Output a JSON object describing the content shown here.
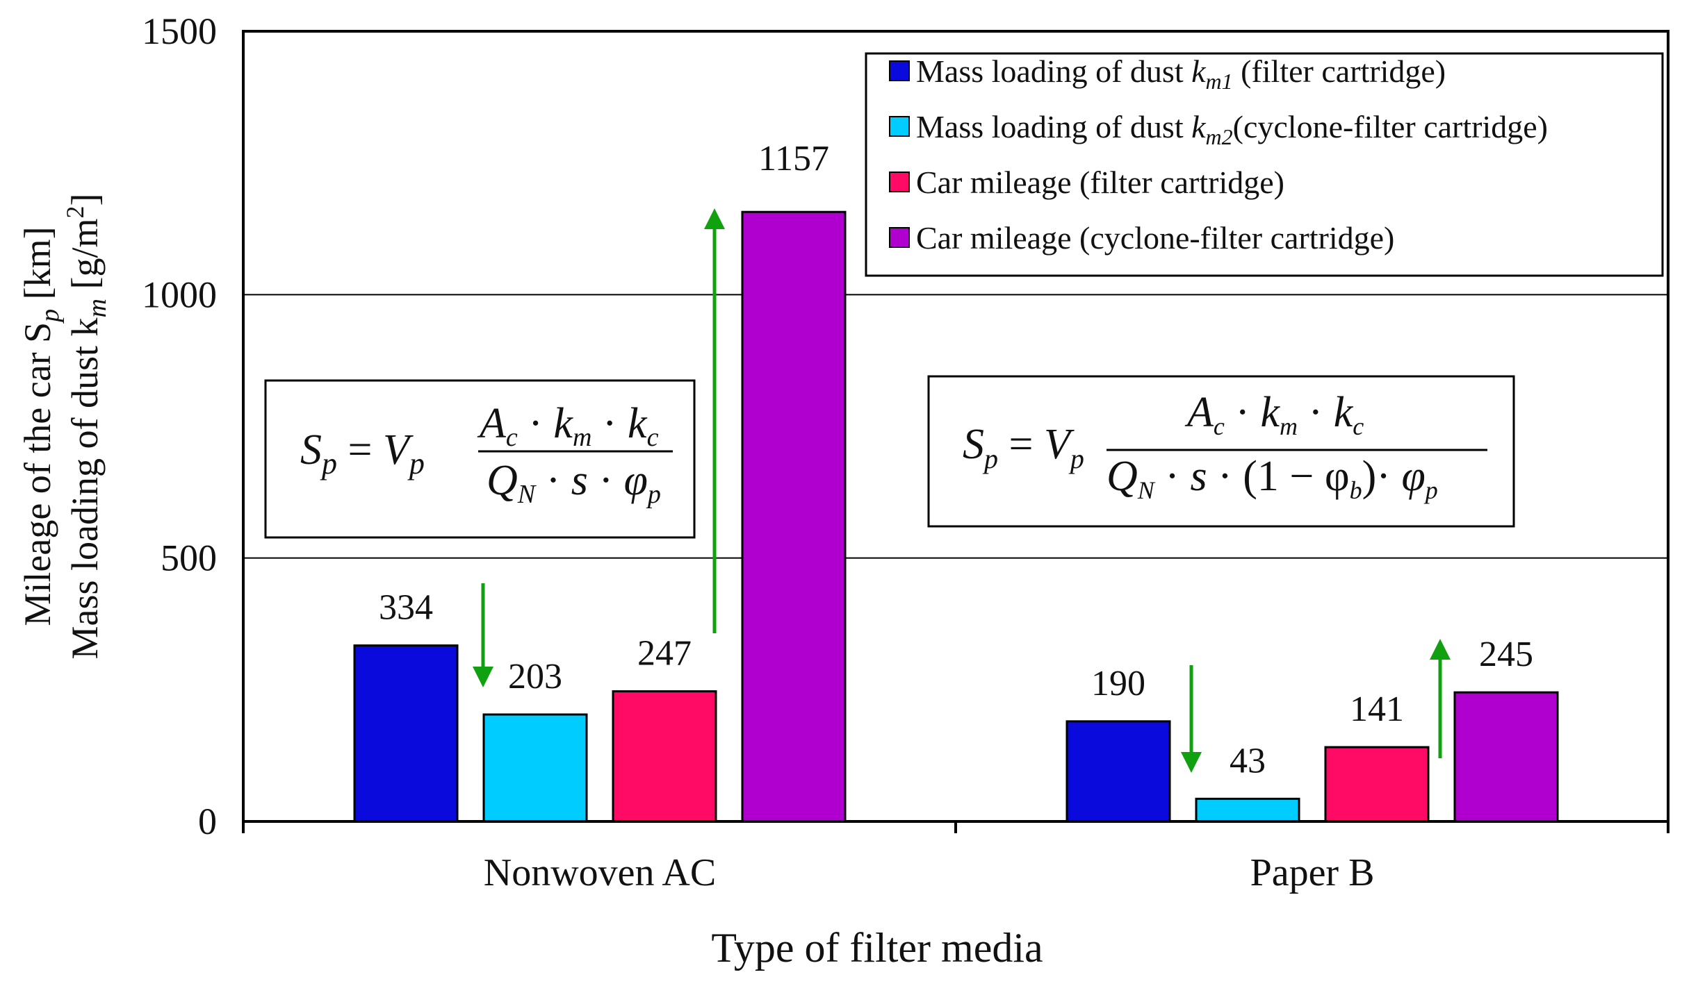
{
  "chart_data": {
    "type": "bar",
    "title": "",
    "xlabel": "Type of filter media",
    "ylabel_line1": "Mileage of the car S",
    "ylabel_line1_sub": "p",
    "ylabel_line1_unit": " [km]",
    "ylabel_line2": "Mass loading of dust k",
    "ylabel_line2_sub": "m",
    "ylabel_line2_unit": " [g/m",
    "ylabel_line2_sup": "2",
    "ylabel_line2_close": "]",
    "ylim": [
      0,
      1500
    ],
    "yticks": [
      "0",
      "500",
      "1000",
      "1500"
    ],
    "grid": true,
    "legend_position": "top-right",
    "categories": [
      "Nonwoven AC",
      "Paper B"
    ],
    "series": [
      {
        "name": "Mass loading of dust km1 (filter cartridge)",
        "color": "#0a0adc",
        "values": [
          334,
          190
        ]
      },
      {
        "name": "Mass loading of dust km2 (cyclone-filter cartridge)",
        "color": "#00ccff",
        "values": [
          203,
          43
        ]
      },
      {
        "name": "Car mileage (filter cartridge)",
        "color": "#ff0a64",
        "values": [
          247,
          141
        ]
      },
      {
        "name": "Car mileage (cyclone-filter cartridge)",
        "color": "#b000d0",
        "values": [
          1157,
          245
        ]
      }
    ],
    "legend": [
      {
        "prefix": "Mass loading of dust ",
        "symbol": "k",
        "sub": "m1",
        "suffix": " (filter cartridge)"
      },
      {
        "prefix": "Mass loading of dust ",
        "symbol": "k",
        "sub": "m2",
        "suffix": "(cyclone-filter cartridge)"
      },
      {
        "prefix": "Car mileage (filter cartridge)",
        "symbol": "",
        "sub": "",
        "suffix": ""
      },
      {
        "prefix": "Car mileage (cyclone-filter cartridge)",
        "symbol": "",
        "sub": "",
        "suffix": ""
      }
    ],
    "annotations": {
      "formula_left": "Sp = Vp · (Ac · km · kc) / (QN · s · φp)",
      "formula_right": "Sp = Vp · (Ac · km · kc) / (QN · s · (1 − φb) · φp)",
      "arrow_color": "#10a010"
    }
  }
}
